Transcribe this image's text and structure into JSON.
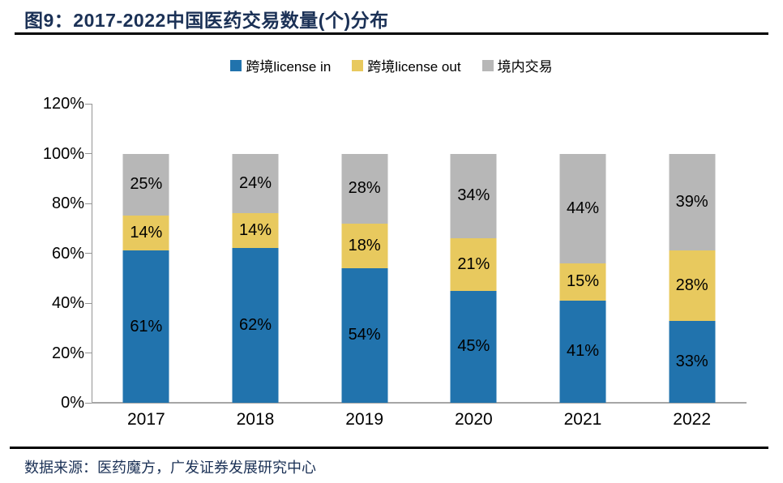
{
  "header": {
    "title": "图9：2017-2022中国医药交易数量(个)分布"
  },
  "footer": {
    "source": "数据来源：医药魔方，广发证券发展研究中心"
  },
  "colors": {
    "title_navy": "#1b3156",
    "rule_black": "#000000",
    "axis_gray": "#949494",
    "series_blue": "#2173ad",
    "series_yellow": "#e8c95e",
    "series_gray": "#b7b7b7"
  },
  "chart_data": {
    "type": "bar",
    "stacked": true,
    "title": "图9：2017-2022中国医药交易数量(个)分布",
    "xlabel": "",
    "ylabel": "",
    "categories": [
      "2017",
      "2018",
      "2019",
      "2020",
      "2021",
      "2022"
    ],
    "series": [
      {
        "key": "license-in",
        "name": "跨境license in",
        "color": "#2173ad",
        "values": [
          61,
          62,
          54,
          45,
          41,
          33
        ]
      },
      {
        "key": "license-out",
        "name": "跨境license out",
        "color": "#e8c95e",
        "values": [
          14,
          14,
          18,
          21,
          15,
          28
        ]
      },
      {
        "key": "domestic",
        "name": "境内交易",
        "color": "#b7b7b7",
        "values": [
          25,
          24,
          28,
          34,
          44,
          39
        ]
      }
    ],
    "value_suffix": "%",
    "ylim": [
      0,
      120
    ],
    "ytick_step": 20,
    "ytick_labels": [
      "0%",
      "20%",
      "40%",
      "60%",
      "80%",
      "100%",
      "120%"
    ],
    "grid": false,
    "legend_position": "top"
  }
}
